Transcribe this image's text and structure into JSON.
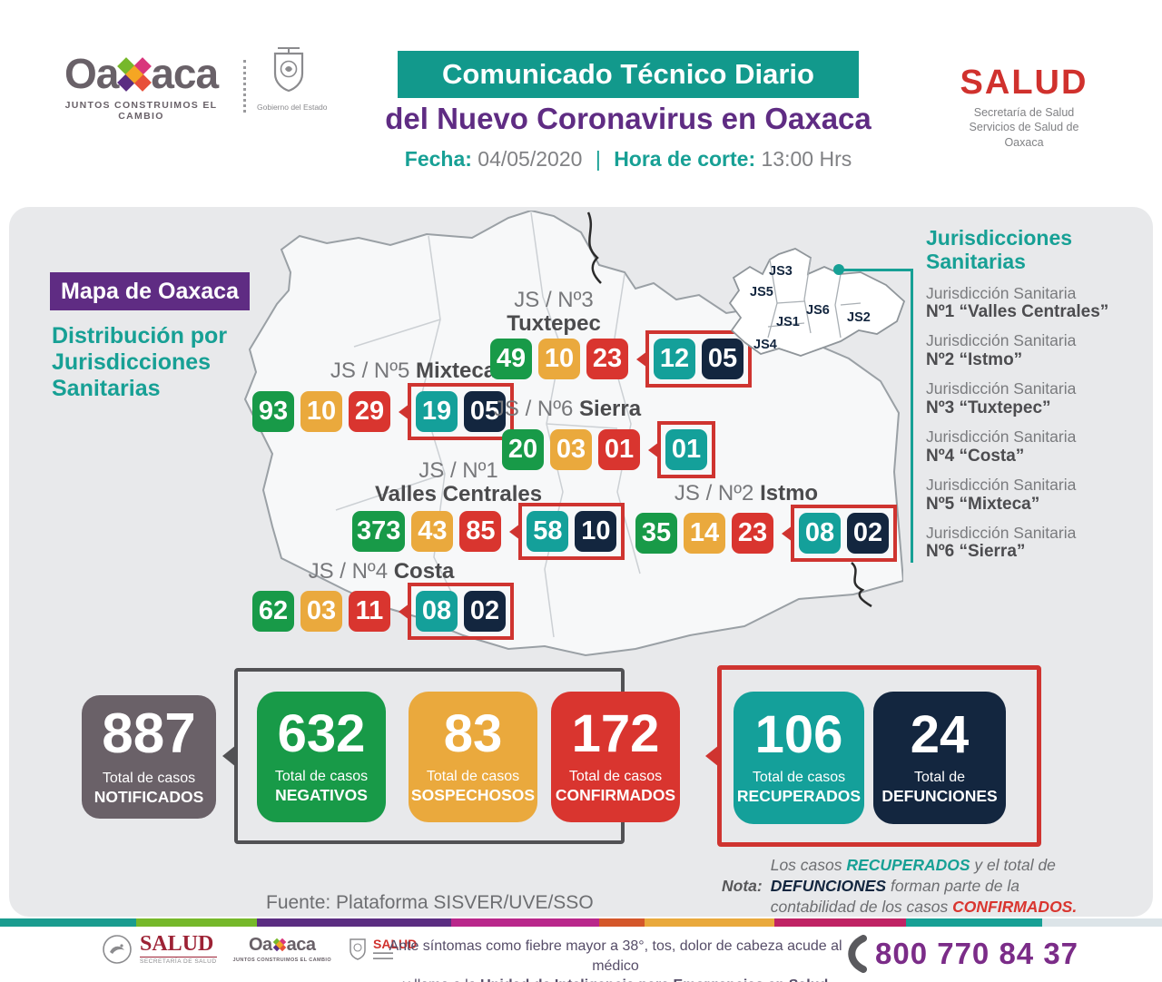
{
  "header": {
    "oaxaca_logo": {
      "wordmark_left": "Oa",
      "wordmark_right": "aca",
      "tagline": "JUNTOS CONSTRUIMOS EL CAMBIO",
      "gov_label": "Gobierno del Estado"
    },
    "title_badge": "Comunicado Técnico Diario",
    "subtitle": "del Nuevo Coronavirus en Oaxaca",
    "date_label": "Fecha:",
    "date_value": "04/05/2020",
    "separator": "|",
    "cutoff_label": "Hora de corte:",
    "cutoff_value": "13:00 Hrs",
    "salud_logo": {
      "wordmark": "SALUD",
      "line1": "Secretaría de Salud",
      "line2": "Servicios de Salud de Oaxaca"
    }
  },
  "map": {
    "title": "Mapa de Oaxaca",
    "subtitle": "Distribución por Jurisdicciones Sanitarias",
    "regions": [
      {
        "prefix": "JS / Nº5",
        "name": "Mixteca",
        "negativos": "93",
        "sospechosos": "10",
        "confirmados": "29",
        "recuperados": "19",
        "defunciones": "05"
      },
      {
        "prefix": "JS / Nº3",
        "name": "Tuxtepec",
        "negativos": "49",
        "sospechosos": "10",
        "confirmados": "23",
        "recuperados": "12",
        "defunciones": "05"
      },
      {
        "prefix": "JS / Nº6",
        "name": "Sierra",
        "negativos": "20",
        "sospechosos": "03",
        "confirmados": "01",
        "recuperados": "01"
      },
      {
        "prefix": "JS / Nº1",
        "name": "Valles Centrales",
        "negativos": "373",
        "sospechosos": "43",
        "confirmados": "85",
        "recuperados": "58",
        "defunciones": "10"
      },
      {
        "prefix": "JS / Nº2",
        "name": "Istmo",
        "negativos": "35",
        "sospechosos": "14",
        "confirmados": "23",
        "recuperados": "08",
        "defunciones": "02"
      },
      {
        "prefix": "JS / Nº4",
        "name": "Costa",
        "negativos": "62",
        "sospechosos": "03",
        "confirmados": "11",
        "recuperados": "08",
        "defunciones": "02"
      }
    ],
    "inset": {
      "js1": "JS1",
      "js2": "JS2",
      "js3": "JS3",
      "js4": "JS4",
      "js5": "JS5",
      "js6": "JS6"
    },
    "legend": {
      "heading": "Jurisdicciones Sanitarias",
      "items": [
        {
          "line1": "Jurisdicción Sanitaria",
          "line2": "Nº1 “Valles Centrales”"
        },
        {
          "line1": "Jurisdicción Sanitaria",
          "line2": "Nº2 “Istmo”"
        },
        {
          "line1": "Jurisdicción Sanitaria",
          "line2": "Nº3 “Tuxtepec”"
        },
        {
          "line1": "Jurisdicción Sanitaria",
          "line2": "Nº4 “Costa”"
        },
        {
          "line1": "Jurisdicción Sanitaria",
          "line2": "Nº5 “Mixteca”"
        },
        {
          "line1": "Jurisdicción Sanitaria",
          "line2": "Nº6 “Sierra”"
        }
      ]
    }
  },
  "stats": {
    "notificados": {
      "value": "887",
      "line1": "Total de casos",
      "line2": "NOTIFICADOS"
    },
    "negativos": {
      "value": "632",
      "line1": "Total de casos",
      "line2": "NEGATIVOS"
    },
    "sospechosos": {
      "value": "83",
      "line1": "Total de casos",
      "line2": "SOSPECHOSOS"
    },
    "confirmados": {
      "value": "172",
      "line1": "Total de casos",
      "line2": "CONFIRMADOS"
    },
    "recuperados": {
      "value": "106",
      "line1": "Total de casos",
      "line2": "RECUPERADOS"
    },
    "defunciones": {
      "value": "24",
      "line1": "Total de",
      "line2": "DEFUNCIONES"
    }
  },
  "fuente": "Fuente: Plataforma SISVER/UVE/SSO",
  "nota": {
    "label": "Nota:",
    "part1": "Los casos",
    "recuperados": "RECUPERADOS",
    "part2": "y el total de",
    "defunciones": "DEFUNCIONES",
    "part3": "forman parte de la contabilidad de los casos",
    "confirmados": "CONFIRMADOS."
  },
  "footer": {
    "advisory_line1": "Ante síntomas como fiebre mayor a 38°, tos, dolor de cabeza acude al médico",
    "advisory_line2_prefix": "y llama a la",
    "advisory_line2_bold": "Unidad de Inteligencia para Emergencias en Salud (UIES)",
    "phone": "800 770 84 37",
    "logo_salud_federal": {
      "wordmark": "SALUD",
      "sub": "SECRETARÍA DE SALUD"
    },
    "logo_oaxaca": {
      "wordmark_left": "Oa",
      "wordmark_right": "aca",
      "tagline": "JUNTOS CONSTRUIMOS EL CAMBIO"
    },
    "logo_sso": {
      "wordmark": "SALUD"
    },
    "stripe_colors": [
      "#1a9c8f",
      "#76b82a",
      "#5b2d82",
      "#b9278b",
      "#d4572a",
      "#e9a93c",
      "#c02364",
      "#17a095",
      "#dce4e8"
    ],
    "stripe_widths": [
      150,
      133,
      214,
      163,
      50,
      143,
      145,
      150,
      132
    ]
  },
  "colors": {
    "teal": "#14a09a",
    "purple": "#5f2c83",
    "green": "#189a48",
    "yellow": "#eaa93d",
    "red": "#d9352f",
    "navy": "#13263f",
    "gray_box": "#6a6168",
    "panel_bg": "#e8e9eb"
  }
}
